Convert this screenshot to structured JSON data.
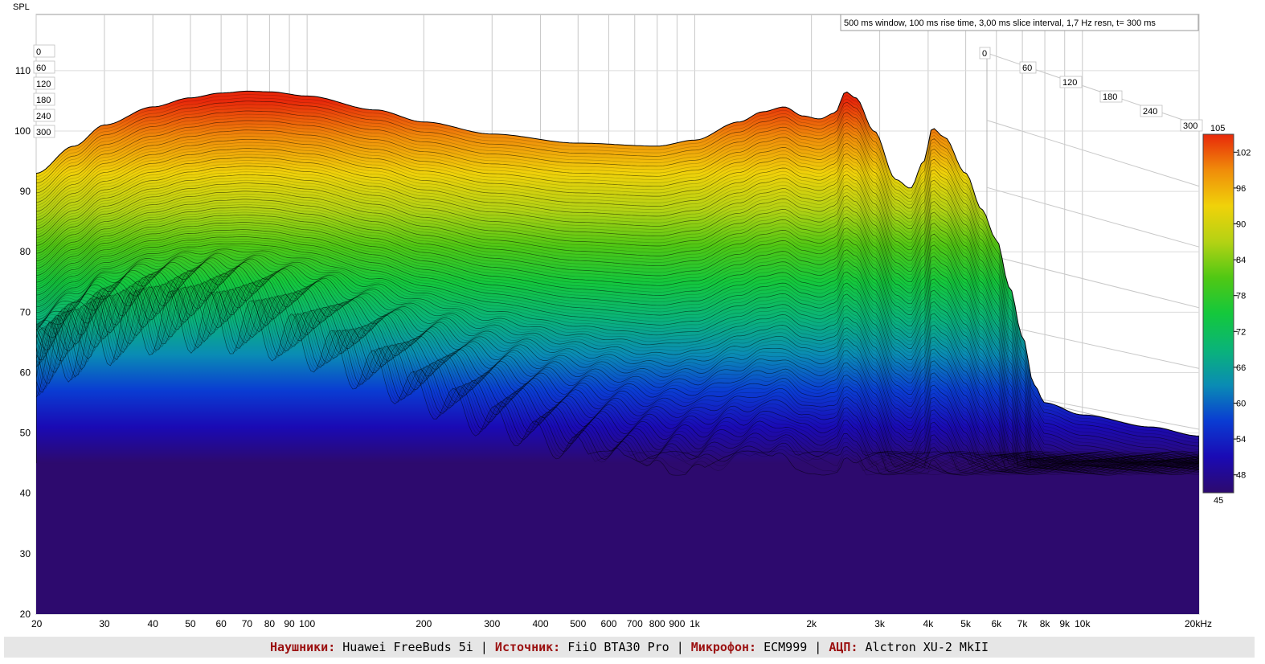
{
  "chart_data": {
    "type": "waterfall",
    "ylabel": "SPL",
    "info": "500 ms window, 100 ms rise time, 3,00 ms slice interval, 1,7 Hz resn, t= 300 ms",
    "x_scale": "log",
    "xlim": [
      20,
      20000
    ],
    "ylim": [
      20,
      120
    ],
    "x_ticks": [
      {
        "v": 20,
        "label": "20"
      },
      {
        "v": 30,
        "label": "30"
      },
      {
        "v": 40,
        "label": "40"
      },
      {
        "v": 50,
        "label": "50"
      },
      {
        "v": 60,
        "label": "60"
      },
      {
        "v": 70,
        "label": "70"
      },
      {
        "v": 80,
        "label": "80"
      },
      {
        "v": 90,
        "label": "90"
      },
      {
        "v": 100,
        "label": "100"
      },
      {
        "v": 200,
        "label": "200"
      },
      {
        "v": 300,
        "label": "300"
      },
      {
        "v": 400,
        "label": "400"
      },
      {
        "v": 500,
        "label": "500"
      },
      {
        "v": 600,
        "label": "600"
      },
      {
        "v": 700,
        "label": "700"
      },
      {
        "v": 800,
        "label": "800"
      },
      {
        "v": 900,
        "label": "900"
      },
      {
        "v": 1000,
        "label": "1k"
      },
      {
        "v": 2000,
        "label": "2k"
      },
      {
        "v": 3000,
        "label": "3k"
      },
      {
        "v": 4000,
        "label": "4k"
      },
      {
        "v": 5000,
        "label": "5k"
      },
      {
        "v": 6000,
        "label": "6k"
      },
      {
        "v": 7000,
        "label": "7k"
      },
      {
        "v": 8000,
        "label": "8k"
      },
      {
        "v": 9000,
        "label": "9k"
      },
      {
        "v": 10000,
        "label": "10k"
      },
      {
        "v": 20000,
        "label": "20kHz"
      }
    ],
    "y_ticks": [
      20,
      30,
      40,
      50,
      60,
      70,
      80,
      90,
      100,
      110
    ],
    "time_axis_labels": [
      "0",
      "60",
      "120",
      "180",
      "240",
      "300"
    ],
    "time_axis_labels_left": [
      "0",
      "60",
      "120",
      "180",
      "240",
      "300"
    ],
    "colorbar": {
      "min": 45,
      "max": 105,
      "ticks": [
        48,
        54,
        60,
        66,
        72,
        78,
        84,
        90,
        96,
        102
      ],
      "min_label": "45",
      "max_label": "105",
      "colors": [
        "#2d0a6e",
        "#1a0ab4",
        "#0a3cd2",
        "#0a8cb4",
        "#0ab478",
        "#14c83c",
        "#50c814",
        "#b4d214",
        "#f0d20a",
        "#f08c0a",
        "#e8280a"
      ]
    },
    "front_curve": [
      [
        20,
        93
      ],
      [
        25,
        97.5
      ],
      [
        30,
        101
      ],
      [
        40,
        104
      ],
      [
        50,
        105.5
      ],
      [
        60,
        106.3
      ],
      [
        70,
        106.6
      ],
      [
        80,
        106.5
      ],
      [
        100,
        105.8
      ],
      [
        150,
        103.5
      ],
      [
        200,
        101.5
      ],
      [
        300,
        99.5
      ],
      [
        500,
        98
      ],
      [
        800,
        97.5
      ],
      [
        1000,
        98.5
      ],
      [
        1300,
        101.5
      ],
      [
        1500,
        103.2
      ],
      [
        1700,
        104
      ],
      [
        1900,
        102.5
      ],
      [
        2100,
        102
      ],
      [
        2300,
        103
      ],
      [
        2450,
        106.5
      ],
      [
        2600,
        105.5
      ],
      [
        2900,
        100
      ],
      [
        3300,
        92
      ],
      [
        3600,
        90.5
      ],
      [
        3900,
        95
      ],
      [
        4100,
        100.5
      ],
      [
        4400,
        99
      ],
      [
        5000,
        93
      ],
      [
        5500,
        87
      ],
      [
        6000,
        82
      ],
      [
        6500,
        74
      ],
      [
        7000,
        66
      ],
      [
        7500,
        58
      ],
      [
        8000,
        55
      ],
      [
        10000,
        53
      ],
      [
        15000,
        51
      ],
      [
        20000,
        49.5
      ]
    ],
    "floor_db": 45,
    "depth_slices": 100
  },
  "footer": {
    "headphones_label": "Наушники:",
    "headphones_value": "Huawei FreeBuds 5i",
    "sep1": "|",
    "source_label": "Источник:",
    "source_value": "FiiO BTA30 Pro",
    "sep2": "|",
    "mic_label": "Микрофон:",
    "mic_value": "ECM999",
    "sep3": "|",
    "adc_label": "АЦП:",
    "adc_value": "Alctron XU-2 MkII"
  }
}
